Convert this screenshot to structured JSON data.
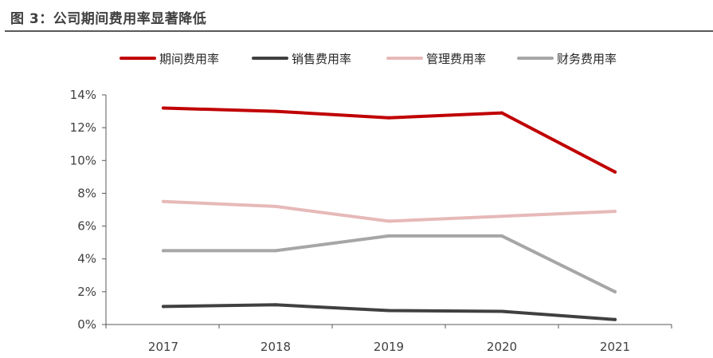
{
  "figure": {
    "title": "图 3：公司期间费用率显著降低"
  },
  "chart_data": {
    "type": "line",
    "title": "",
    "xlabel": "",
    "ylabel": "",
    "categories": [
      "2017",
      "2018",
      "2019",
      "2020",
      "2021"
    ],
    "ylim": [
      0,
      14
    ],
    "y_ticks": [
      "0%",
      "2%",
      "4%",
      "6%",
      "8%",
      "10%",
      "12%",
      "14%"
    ],
    "y_unit": "%",
    "grid": false,
    "legend_position": "top",
    "series": [
      {
        "name": "期间费用率",
        "color": "#C00000",
        "values": [
          13.2,
          13.0,
          12.6,
          12.9,
          9.3
        ]
      },
      {
        "name": "销售费用率",
        "color": "#404040",
        "values": [
          1.1,
          1.2,
          0.85,
          0.8,
          0.3
        ]
      },
      {
        "name": "管理费用率",
        "color": "#E6B9B8",
        "values": [
          7.5,
          7.2,
          6.3,
          6.6,
          6.9
        ]
      },
      {
        "name": "财务费用率",
        "color": "#A6A6A6",
        "values": [
          4.5,
          4.5,
          5.4,
          5.4,
          2.0
        ]
      }
    ]
  }
}
